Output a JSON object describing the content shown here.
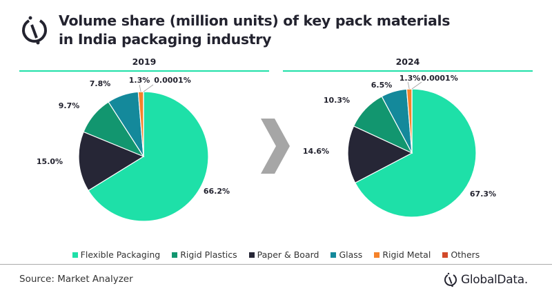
{
  "title_line1": "Volume share (million units) of key pack materials",
  "title_line2": "in India packaging industry",
  "source": "Source: Market Analyzer",
  "brand": "GlobalData.",
  "chart_data": [
    {
      "type": "pie",
      "title": "2019",
      "categories": [
        "Flexible Packaging",
        "Paper & Board",
        "Rigid Plastics",
        "Glass",
        "Rigid Metal",
        "Others"
      ],
      "values": [
        66.2,
        15.0,
        9.7,
        7.8,
        1.3,
        0.0001
      ],
      "labels": [
        "66.2%",
        "15.0%",
        "9.7%",
        "7.8%",
        "1.3%",
        "0.0001%"
      ]
    },
    {
      "type": "pie",
      "title": "2024",
      "categories": [
        "Flexible Packaging",
        "Paper & Board",
        "Rigid Plastics",
        "Glass",
        "Rigid Metal",
        "Others"
      ],
      "values": [
        67.3,
        14.6,
        10.3,
        6.5,
        1.3,
        0.0001
      ],
      "labels": [
        "67.3%",
        "14.6%",
        "10.3%",
        "6.5%",
        "1.3%",
        "0.0001%"
      ]
    }
  ],
  "legend": [
    {
      "label": "Flexible Packaging",
      "color": "#1ee0a8"
    },
    {
      "label": "Rigid Plastics",
      "color": "#12966f"
    },
    {
      "label": "Paper & Board",
      "color": "#262636"
    },
    {
      "label": "Glass",
      "color": "#14899b"
    },
    {
      "label": "Rigid Metal",
      "color": "#f5822a"
    },
    {
      "label": "Others",
      "color": "#d24a2a"
    }
  ],
  "colors": {
    "Flexible Packaging": "#1ee0a8",
    "Rigid Plastics": "#12966f",
    "Paper & Board": "#262636",
    "Glass": "#14899b",
    "Rigid Metal": "#f5822a",
    "Others": "#d24a2a",
    "arrow": "#a6a6a6"
  }
}
